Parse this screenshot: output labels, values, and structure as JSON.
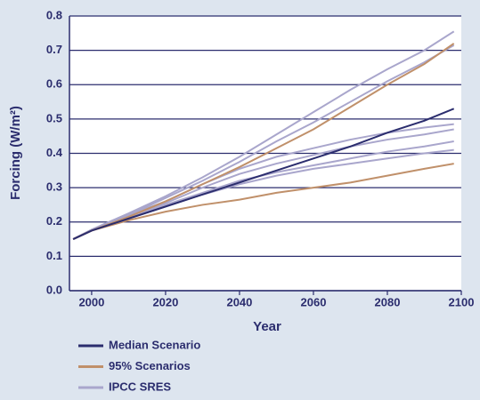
{
  "chart_data": {
    "type": "line",
    "x_label": "Year",
    "y_label": "Forcing (W/m²)",
    "x": [
      1995,
      2000,
      2010,
      2020,
      2030,
      2040,
      2050,
      2060,
      2070,
      2080,
      2090,
      2098
    ],
    "xlim": [
      1994,
      2100
    ],
    "xticks": [
      2000,
      2020,
      2040,
      2060,
      2080,
      2100
    ],
    "ylim": [
      0,
      0.8
    ],
    "yticks": [
      {
        "value": 0,
        "label": "0.0"
      },
      0.1,
      0.2,
      0.3,
      0.4,
      0.5,
      0.6,
      0.7,
      0.8
    ],
    "grid": true,
    "series": [
      {
        "name": "Median Scenario",
        "color": "#2b2d6e",
        "lines": [
          [
            0.15,
            0.175,
            0.21,
            0.245,
            0.28,
            0.315,
            0.35,
            0.385,
            0.42,
            0.46,
            0.495,
            0.53
          ]
        ]
      },
      {
        "name": "95% Scenarios",
        "color": "#c0906a",
        "lines": [
          [
            0.15,
            0.175,
            0.215,
            0.26,
            0.31,
            0.36,
            0.415,
            0.47,
            0.535,
            0.6,
            0.66,
            0.72
          ],
          [
            0.15,
            0.175,
            0.205,
            0.23,
            0.25,
            0.265,
            0.285,
            0.3,
            0.315,
            0.335,
            0.355,
            0.37
          ]
        ]
      },
      {
        "name": "IPCC SRES",
        "color": "#a9a6cc",
        "lines": [
          [
            0.15,
            0.178,
            0.225,
            0.275,
            0.33,
            0.39,
            0.455,
            0.52,
            0.585,
            0.645,
            0.7,
            0.755
          ],
          [
            0.15,
            0.177,
            0.22,
            0.27,
            0.32,
            0.375,
            0.435,
            0.49,
            0.55,
            0.61,
            0.665,
            0.715
          ],
          [
            0.15,
            0.177,
            0.22,
            0.26,
            0.31,
            0.355,
            0.39,
            0.415,
            0.44,
            0.46,
            0.475,
            0.485
          ],
          [
            0.15,
            0.176,
            0.215,
            0.255,
            0.3,
            0.34,
            0.37,
            0.395,
            0.42,
            0.44,
            0.455,
            0.47
          ],
          [
            0.15,
            0.175,
            0.21,
            0.25,
            0.285,
            0.32,
            0.345,
            0.365,
            0.385,
            0.405,
            0.42,
            0.435
          ],
          [
            0.15,
            0.175,
            0.21,
            0.245,
            0.28,
            0.31,
            0.335,
            0.355,
            0.37,
            0.385,
            0.4,
            0.41
          ]
        ]
      }
    ]
  }
}
